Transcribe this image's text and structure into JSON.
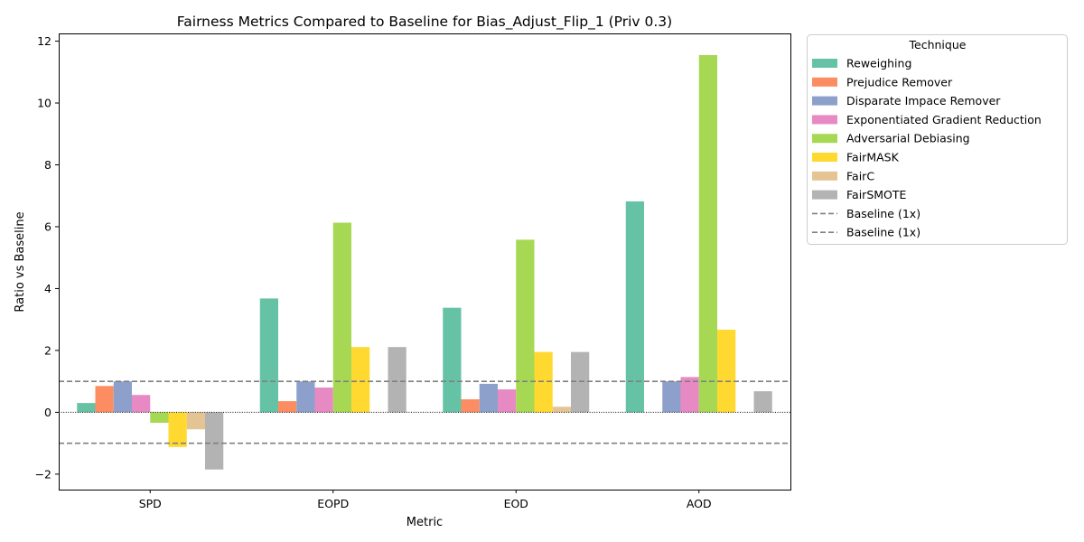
{
  "chart_data": {
    "type": "bar",
    "title": "Fairness Metrics Compared to Baseline for Bias_Adjust_Flip_1 (Priv 0.3)",
    "xlabel": "Metric",
    "ylabel": "Ratio vs Baseline",
    "categories": [
      "SPD",
      "EOPD",
      "EOD",
      "AOD"
    ],
    "ylim": [
      -2.5,
      12.25
    ],
    "yticks": [
      -2,
      0,
      2,
      4,
      6,
      8,
      10,
      12
    ],
    "ytick_labels": [
      "−2",
      "0",
      "2",
      "4",
      "6",
      "8",
      "10",
      "12"
    ],
    "grid": false,
    "legend": {
      "title": "Technique",
      "placement": "outside-right-top"
    },
    "series": [
      {
        "name": "Reweighing",
        "color": "#66c2a5",
        "values": [
          0.3,
          3.68,
          3.38,
          6.82
        ]
      },
      {
        "name": "Prejudice Remover",
        "color": "#fc8d62",
        "values": [
          0.85,
          0.36,
          0.42,
          0
        ]
      },
      {
        "name": "Disparate Impace Remover",
        "color": "#8da0cb",
        "values": [
          1.0,
          1.0,
          0.92,
          1.0
        ]
      },
      {
        "name": "Exponentiated Gradient Reduction",
        "color": "#e78ac3",
        "values": [
          0.56,
          0.8,
          0.74,
          1.14
        ]
      },
      {
        "name": "Adversarial Debiasing",
        "color": "#a6d854",
        "values": [
          -0.34,
          6.13,
          5.58,
          11.55
        ]
      },
      {
        "name": "FairMASK",
        "color": "#ffd92f",
        "values": [
          -1.12,
          2.11,
          1.95,
          2.67
        ]
      },
      {
        "name": "FairC",
        "color": "#e5c494",
        "values": [
          -0.55,
          0,
          0.18,
          0
        ]
      },
      {
        "name": "FairSMOTE",
        "color": "#b3b3b3",
        "values": [
          -1.85,
          2.11,
          1.95,
          0.68
        ]
      }
    ],
    "reference_lines": [
      {
        "name": "Baseline (1x)",
        "y": 1,
        "style": "dashed",
        "color": "#808080"
      },
      {
        "name": "Baseline (1x)",
        "y": -1,
        "style": "dashed",
        "color": "#808080"
      }
    ],
    "zero_line": {
      "y": 0,
      "style": "dotted",
      "color": "#000000"
    }
  }
}
